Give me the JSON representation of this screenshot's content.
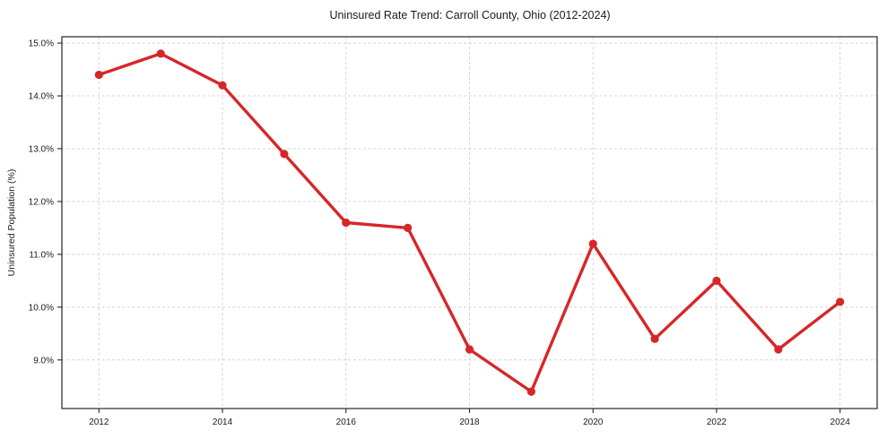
{
  "chart_data": {
    "type": "line",
    "title": "Uninsured Rate Trend: Carroll County, Ohio (2012-2024)",
    "xlabel": "",
    "ylabel": "Uninsured Population (%)",
    "x": [
      2012,
      2013,
      2014,
      2015,
      2016,
      2017,
      2018,
      2019,
      2020,
      2021,
      2022,
      2023,
      2024
    ],
    "series": [
      {
        "name": "Uninsured rate",
        "values": [
          14.4,
          14.8,
          14.2,
          12.9,
          11.6,
          11.5,
          9.2,
          8.4,
          11.2,
          9.4,
          10.5,
          9.2,
          10.1
        ],
        "color": "#d62728",
        "marker": "circle",
        "marker_radius": 4.6,
        "line_width": 3.4
      }
    ],
    "x_ticks": [
      2012,
      2014,
      2016,
      2018,
      2020,
      2022,
      2024
    ],
    "x_tick_labels": [
      "2012",
      "2014",
      "2016",
      "2018",
      "2020",
      "2022",
      "2024"
    ],
    "y_ticks": [
      9.0,
      10.0,
      11.0,
      12.0,
      13.0,
      14.0,
      15.0
    ],
    "y_tick_labels": [
      "9.0%",
      "10.0%",
      "11.0%",
      "12.0%",
      "13.0%",
      "14.0%",
      "15.0%"
    ],
    "xlim": [
      2011.4,
      2024.6
    ],
    "ylim": [
      8.08,
      15.12
    ],
    "grid": true,
    "grid_style": "dashed",
    "legend": "none",
    "colors": {
      "line": "#d62728",
      "grid": "#d4d4d4",
      "spine": "#262626",
      "text": "#1a1a1a",
      "background": "#ffffff"
    }
  }
}
